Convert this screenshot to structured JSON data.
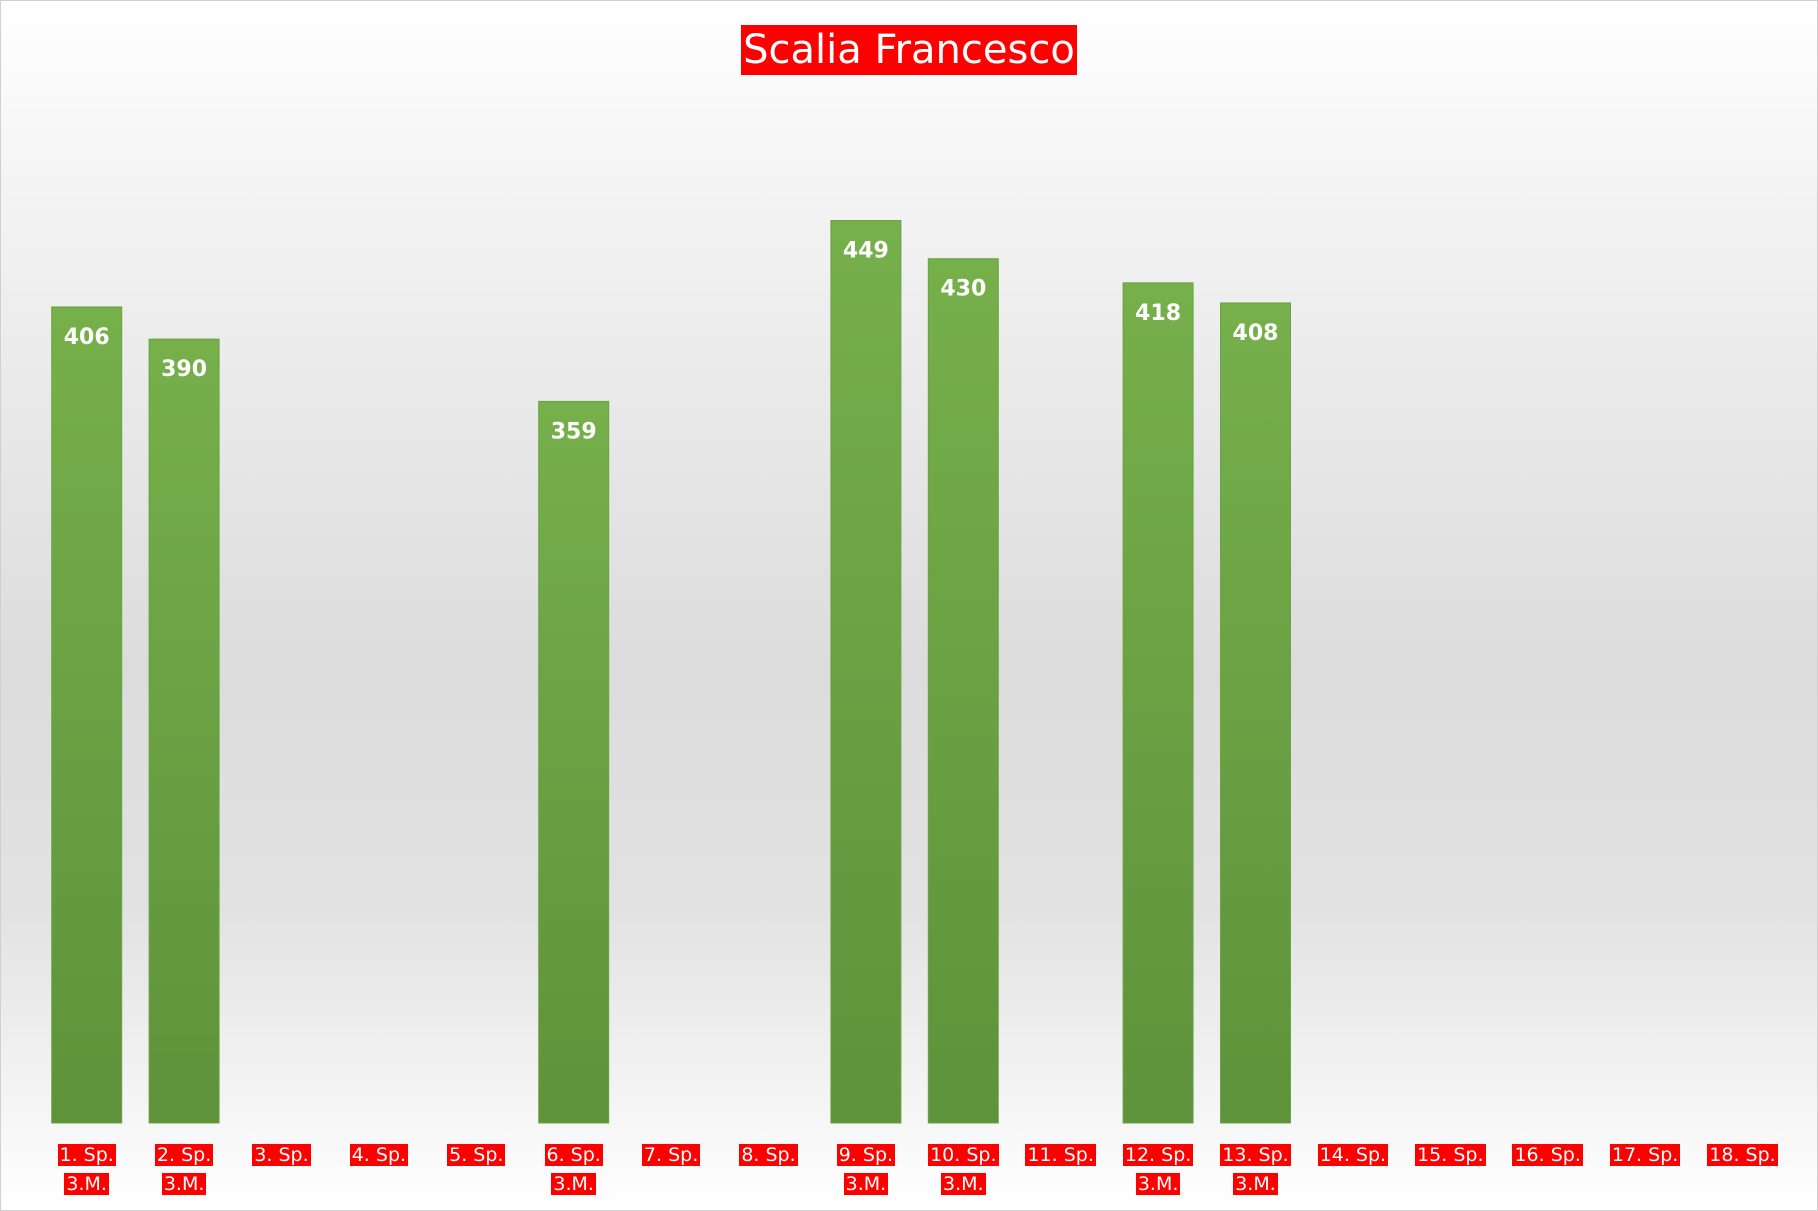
{
  "chart_data": {
    "type": "bar",
    "title": "Scalia Francesco",
    "categories": [
      "1. Sp.\n3.M.",
      "2. Sp.\n3.M.",
      "3. Sp.",
      "4. Sp.",
      "5. Sp.",
      "6. Sp.\n3.M.",
      "7. Sp.",
      "8. Sp.",
      "9. Sp.\n3.M.",
      "10. Sp.\n3.M.",
      "11. Sp.",
      "12. Sp.\n3.M.",
      "13. Sp.\n3.M.",
      "14. Sp.",
      "15. Sp.",
      "16. Sp.",
      "17. Sp.",
      "18. Sp."
    ],
    "values": [
      406,
      390,
      null,
      null,
      null,
      359,
      null,
      null,
      449,
      430,
      null,
      418,
      408,
      null,
      null,
      null,
      null,
      null
    ],
    "color": "#6aa443",
    "ylim": [
      0,
      500
    ]
  }
}
